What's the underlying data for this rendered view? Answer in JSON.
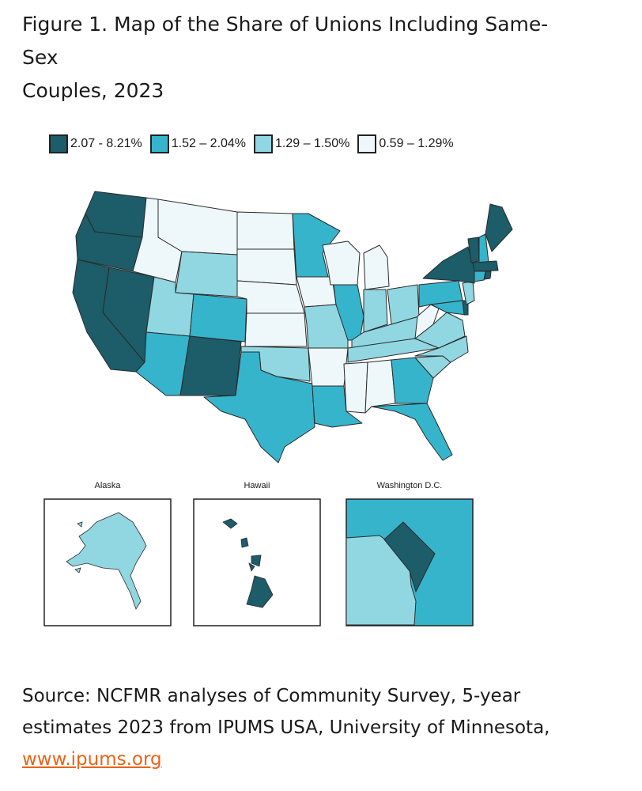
{
  "figure": {
    "title_line1": "Figure 1. Map of the Share of Unions Including Same-Sex",
    "title_line2": "Couples, 2023"
  },
  "legend": [
    {
      "label": "2.07 - 8.21%",
      "color": "#1d5c69"
    },
    {
      "label": "1.52 – 2.04%",
      "color": "#36b4cc"
    },
    {
      "label": "1.29 – 1.50%",
      "color": "#91d7e2"
    },
    {
      "label": "0.59 – 1.29%",
      "color": "#eef8fb"
    }
  ],
  "insets": {
    "alaska": "Alaska",
    "hawaii": "Hawaii",
    "dc": "Washington D.C."
  },
  "source": {
    "line1": "Source: NCFMR analyses of Community Survey, 5-year",
    "line2": "estimates 2023 from IPUMS USA, University of Minnesota,",
    "link": "www.ipums.org"
  }
}
